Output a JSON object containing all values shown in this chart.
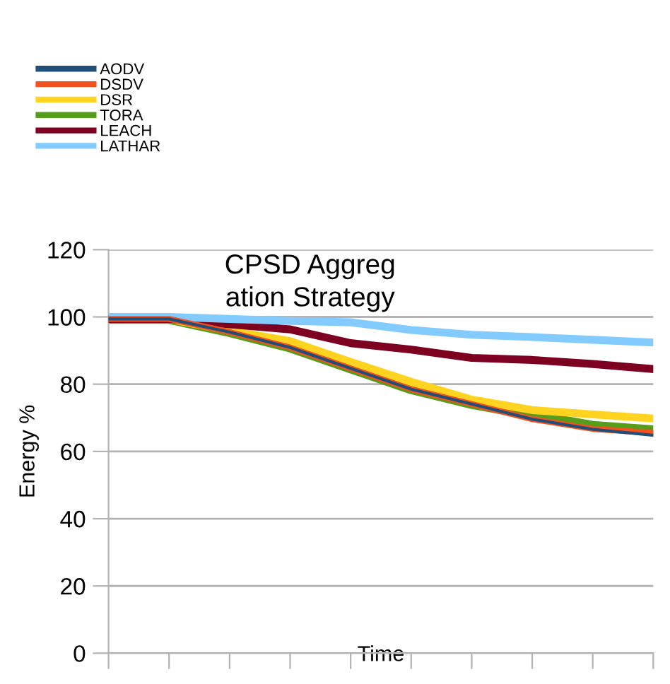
{
  "chart_data": {
    "type": "line",
    "title": "CPSD Aggreg\nation Strategy",
    "xlabel": "Time",
    "ylabel": "Energy %",
    "categories": [
      null,
      null,
      null,
      null,
      null,
      null,
      null,
      null,
      null,
      null
    ],
    "series": [
      {
        "name": "AODV",
        "color": "#1f4e79",
        "values": [
          99.4,
          99.4,
          95.5,
          90.9,
          84.7,
          78.5,
          74.1,
          69.6,
          66.6,
          64.8
        ]
      },
      {
        "name": "DSDV",
        "color": "#f4511e",
        "values": [
          99.4,
          99.4,
          95.5,
          90.9,
          84.7,
          78.5,
          74.1,
          69.6,
          66.7,
          65.5
        ]
      },
      {
        "name": "DSR",
        "color": "#ffd320",
        "values": [
          99.4,
          99.4,
          95.9,
          92.8,
          86.6,
          80.7,
          75.4,
          72.3,
          71,
          69.8
        ]
      },
      {
        "name": "TORA",
        "color": "#579d1c",
        "values": [
          99.4,
          99.4,
          95.5,
          90.9,
          84.7,
          78.5,
          74.1,
          70.8,
          67.6,
          66.3
        ]
      },
      {
        "name": "LEACH",
        "color": "#7e0021",
        "values": [
          99.4,
          99.4,
          97.8,
          96.3,
          92.2,
          90.3,
          87.8,
          87.2,
          86,
          84.5
        ]
      },
      {
        "name": "LATHAR",
        "color": "#83caff",
        "values": [
          100,
          100,
          99.4,
          98.8,
          98.4,
          96.1,
          94.7,
          94,
          93.2,
          92.4
        ]
      }
    ],
    "ylim": [
      0,
      120
    ],
    "yticks": [
      0,
      20,
      40,
      60,
      80,
      100,
      120
    ],
    "grid": "y",
    "legend": "top left",
    "tick_labels": "y",
    "marker": "none",
    "line_style": "solid"
  }
}
